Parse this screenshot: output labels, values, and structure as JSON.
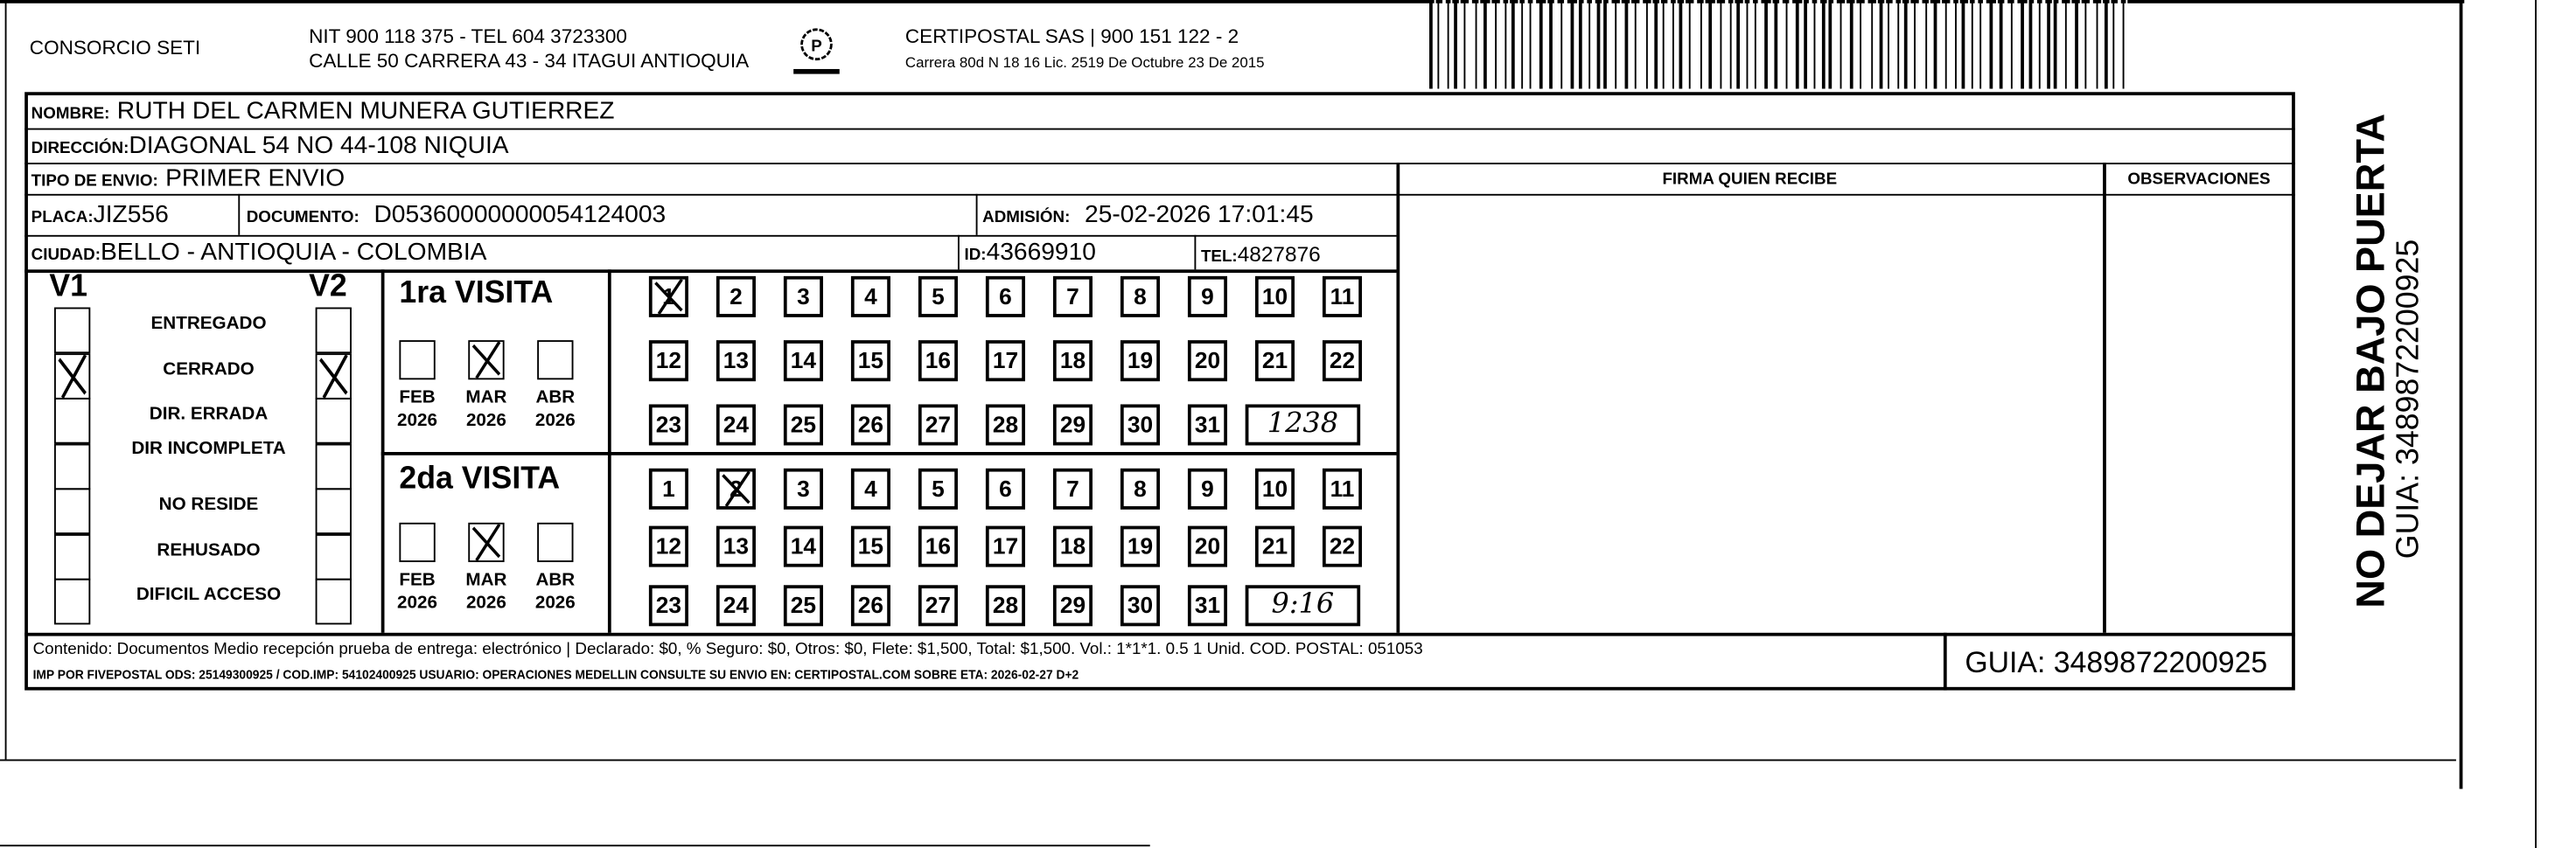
{
  "header": {
    "company": "CONSORCIO SETI",
    "nit_line": "NIT 900 118 375 - TEL 604 3723300",
    "address_line": "CALLE 50 CARRERA 43 - 34 ITAGUI ANTIOQUIA",
    "logo_text": "CERTIPOSTAL",
    "carrier_line": "CERTIPOSTAL SAS | 900 151 122 - 2",
    "license_line": "Carrera 80d N 18 16  Lic. 2519 De Octubre 23 De 2015"
  },
  "fields": {
    "nombre_label": "NOMBRE:",
    "nombre": "RUTH DEL CARMEN MUNERA GUTIERREZ",
    "direccion_label": "DIRECCIÓN:",
    "direccion": "DIAGONAL 54 NO 44-108 NIQUIA",
    "tipo_label": "TIPO DE ENVIO:",
    "tipo": "PRIMER ENVIO",
    "placa_label": "PLACA:",
    "placa": "JIZ556",
    "documento_label": "DOCUMENTO:",
    "documento": "D05360000000054124003",
    "admision_label": "ADMISIÓN:",
    "admision": "25-02-2026 17:01:45",
    "ciudad_label": "CIUDAD:",
    "ciudad": "BELLO - ANTIOQUIA - COLOMBIA",
    "id_label": "ID:",
    "id": "43669910",
    "tel_label": "TEL:",
    "tel": "4827876"
  },
  "signature": {
    "firma_label": "FIRMA QUIEN RECIBE",
    "observaciones_label": "OBSERVACIONES"
  },
  "status": {
    "v1_label": "V1",
    "v2_label": "V2",
    "items": [
      {
        "label": "ENTREGADO",
        "v1": false,
        "v2": false
      },
      {
        "label": "CERRADO",
        "v1": true,
        "v2": true
      },
      {
        "label": "DIR. ERRADA",
        "v1": false,
        "v2": false
      },
      {
        "label": "DIR INCOMPLETA",
        "v1": false,
        "v2": false
      },
      {
        "label": "NO RESIDE",
        "v1": false,
        "v2": false
      },
      {
        "label": "REHUSADO",
        "v1": false,
        "v2": false
      },
      {
        "label": "DIFICIL ACCESO",
        "v1": false,
        "v2": false
      }
    ]
  },
  "visits": [
    {
      "title": "1ra VISITA",
      "months": [
        {
          "m": "FEB",
          "y": "2026",
          "checked": false
        },
        {
          "m": "MAR",
          "y": "2026",
          "checked": true
        },
        {
          "m": "ABR",
          "y": "2026",
          "checked": false
        }
      ],
      "checked_day": 1,
      "handwritten": "1238"
    },
    {
      "title": "2da VISITA",
      "months": [
        {
          "m": "FEB",
          "y": "2026",
          "checked": false
        },
        {
          "m": "MAR",
          "y": "2026",
          "checked": true
        },
        {
          "m": "ABR",
          "y": "2026",
          "checked": false
        }
      ],
      "checked_day": 2,
      "handwritten": "9:16"
    }
  ],
  "footer": {
    "line1": "Contenido: Documentos Medio recepción prueba de entrega: electrónico | Declarado: $0, % Seguro: $0, Otros: $0, Flete: $1,500, Total: $1,500. Vol.: 1*1*1. 0.5  1 Unid. COD. POSTAL: 051053",
    "line2": "IMP POR FIVEPOSTAL ODS: 25149300925 / COD.IMP: 54102400925 USUARIO: OPERACIONES MEDELLIN CONSULTE SU ENVIO EN: CERTIPOSTAL.COM SOBRE ETA: 2026-02-27 D+2",
    "guia": "GUIA: 3489872200925"
  },
  "side": {
    "warning": "NO DEJAR BAJO PUERTA",
    "guia": "GUIA: 3489872200925"
  }
}
